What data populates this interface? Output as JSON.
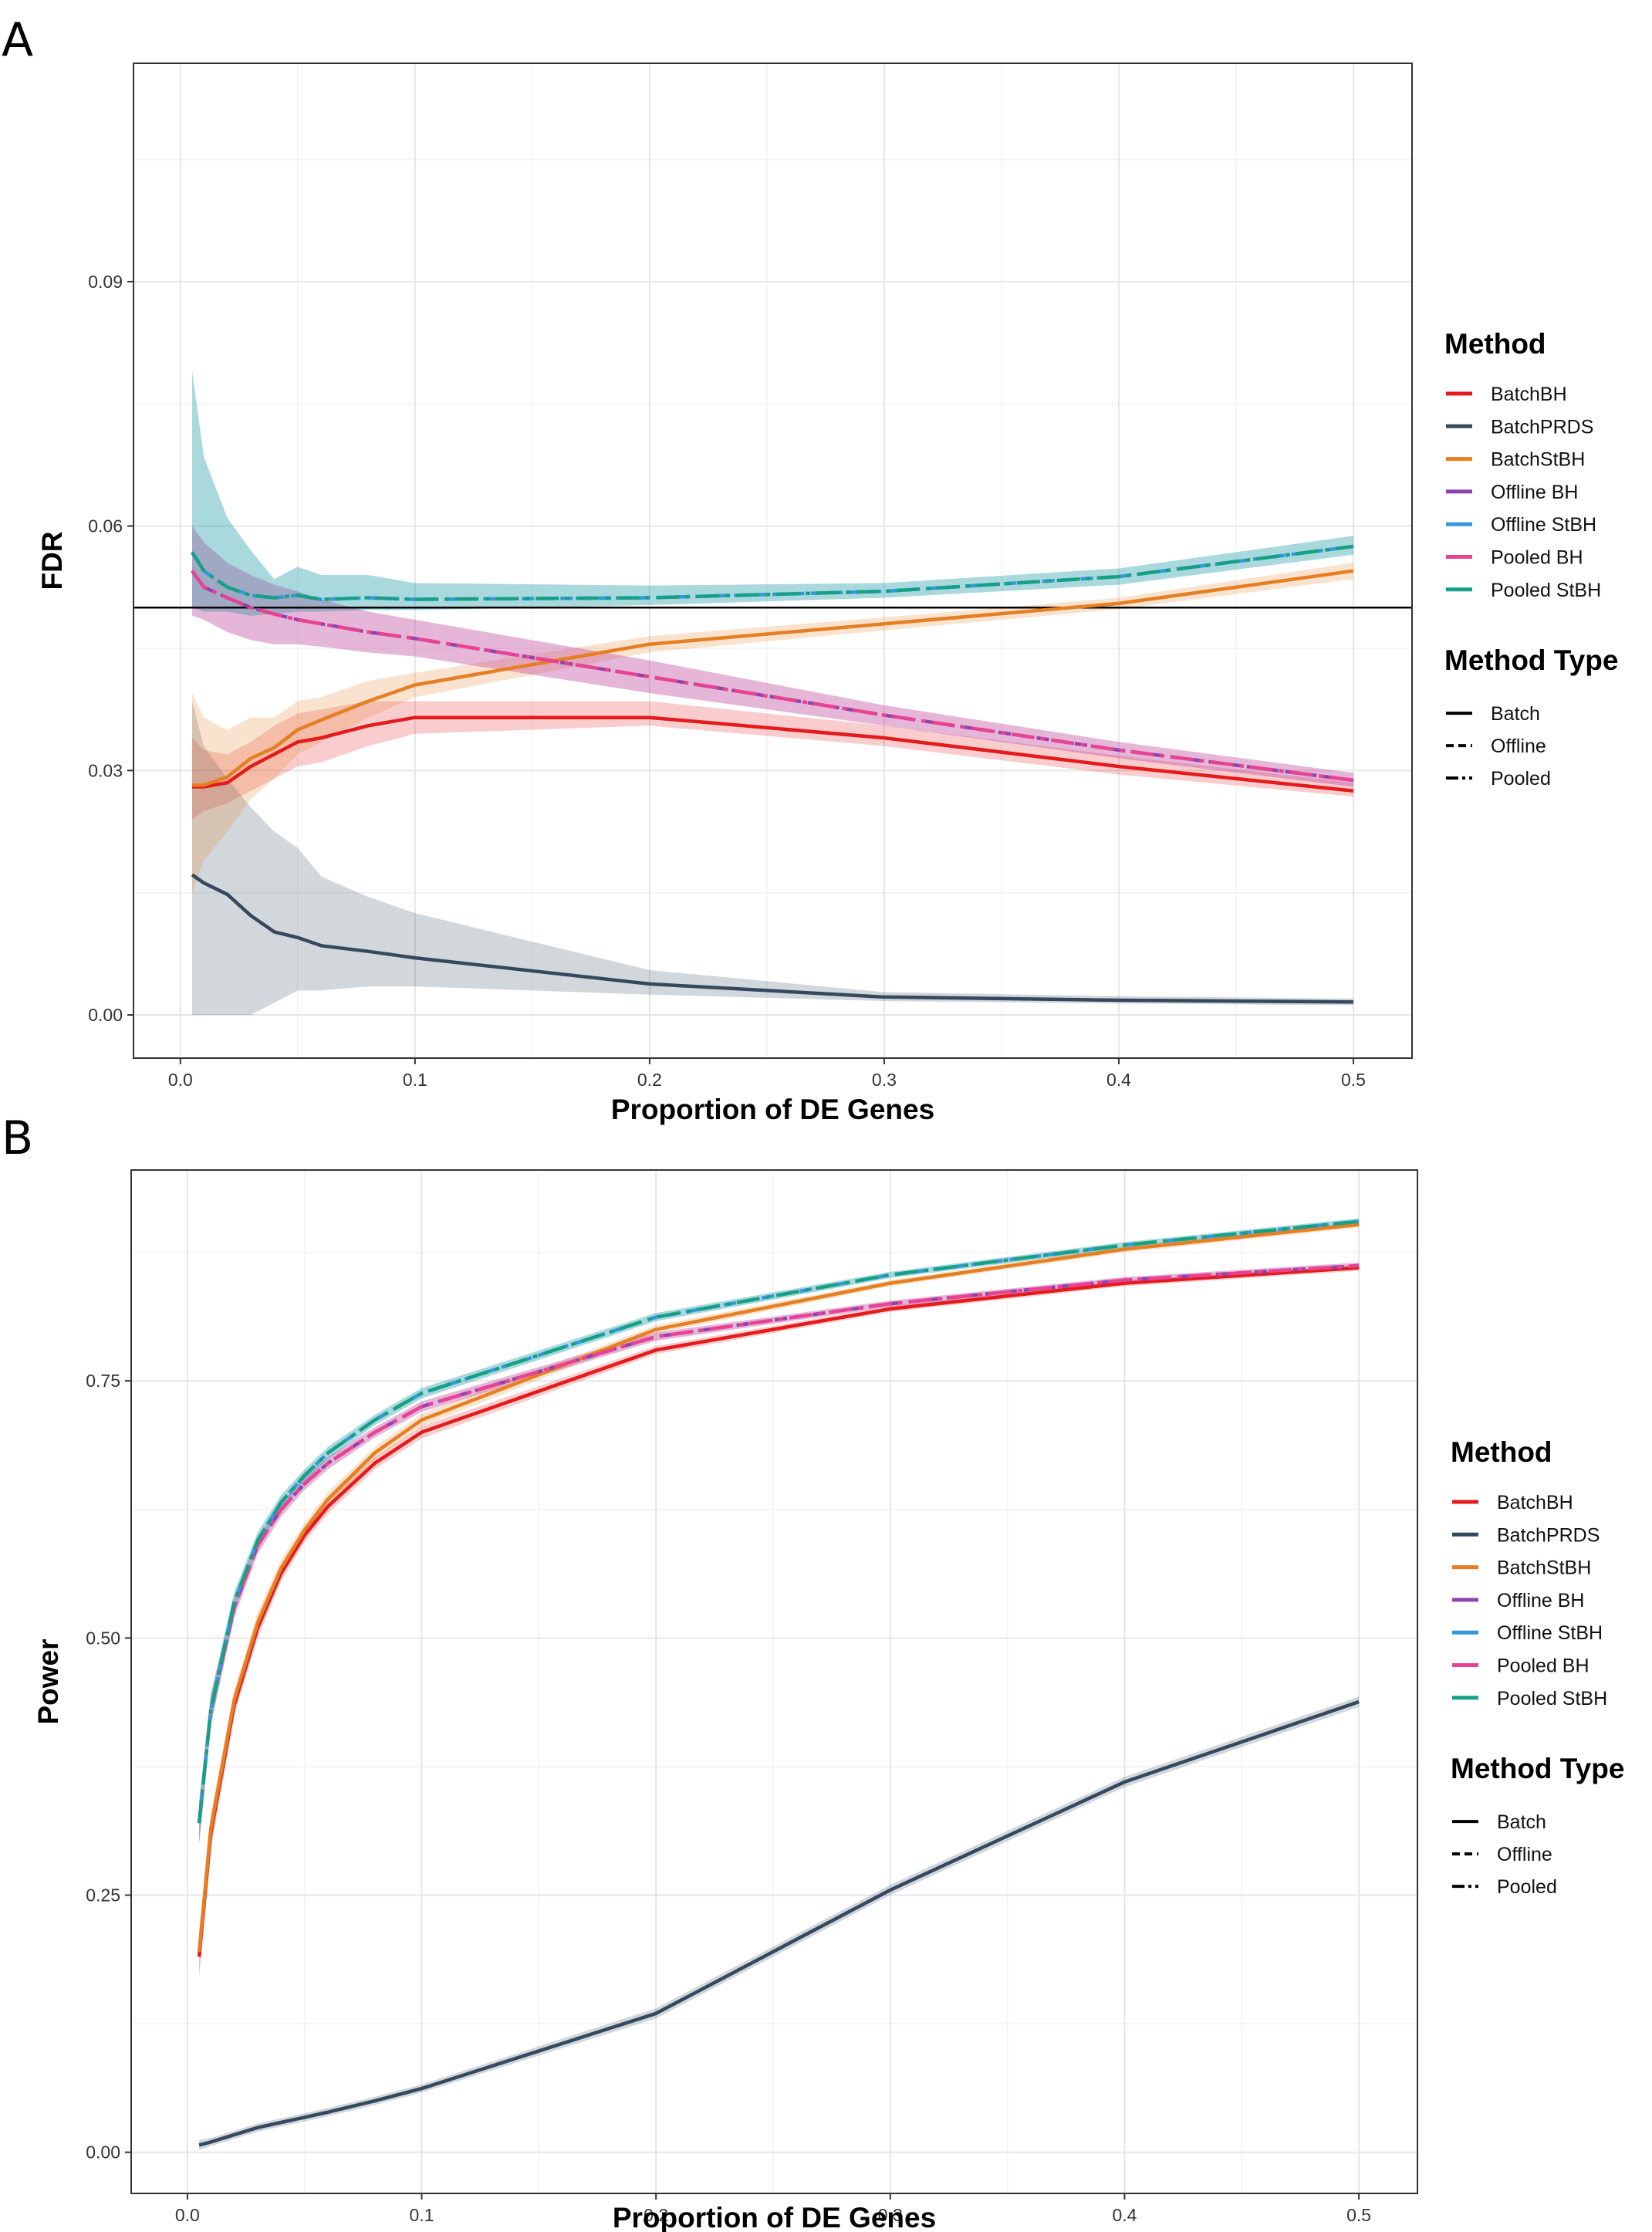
{
  "chart_data": [
    {
      "panel_label": "A",
      "type": "line",
      "xlabel": "Proportion of DE Genes",
      "ylabel": "FDR",
      "xlim": [
        -0.02,
        0.525
      ],
      "ylim": [
        -0.0053,
        0.1168
      ],
      "xticks": [
        0.0,
        0.1,
        0.2,
        0.3,
        0.4,
        0.5
      ],
      "xtick_labels": [
        "0.0",
        "0.1",
        "0.2",
        "0.3",
        "0.4",
        "0.5"
      ],
      "yticks": [
        0.0,
        0.03,
        0.06,
        0.09
      ],
      "ytick_labels": [
        "0.00",
        "0.03",
        "0.06",
        "0.09"
      ],
      "reference_line": 0.05,
      "grid": true,
      "legend_position": "right",
      "series": [
        {
          "name": "BatchBH",
          "method": "BatchBH",
          "type": "Batch",
          "color": "#e41a1c",
          "x": [
            0.005,
            0.01,
            0.02,
            0.03,
            0.04,
            0.05,
            0.06,
            0.08,
            0.1,
            0.2,
            0.3,
            0.4,
            0.5
          ],
          "y": [
            0.028,
            0.028,
            0.0285,
            0.0305,
            0.032,
            0.0335,
            0.034,
            0.0355,
            0.0365,
            0.0365,
            0.034,
            0.0305,
            0.0275
          ],
          "lower": [
            0.024,
            0.025,
            0.026,
            0.0275,
            0.029,
            0.0305,
            0.031,
            0.033,
            0.0345,
            0.0355,
            0.033,
            0.0295,
            0.0268
          ],
          "upper": [
            0.034,
            0.0325,
            0.032,
            0.0335,
            0.0355,
            0.037,
            0.0375,
            0.0385,
            0.0385,
            0.0385,
            0.0355,
            0.0318,
            0.0285
          ]
        },
        {
          "name": "BatchPRDS",
          "method": "BatchPRDS",
          "type": "Batch",
          "color": "#34495e",
          "x": [
            0.005,
            0.01,
            0.02,
            0.03,
            0.04,
            0.05,
            0.06,
            0.08,
            0.1,
            0.2,
            0.3,
            0.4,
            0.5
          ],
          "y": [
            0.0172,
            0.0162,
            0.0148,
            0.0122,
            0.0102,
            0.0095,
            0.0085,
            0.0078,
            0.007,
            0.0038,
            0.0022,
            0.0018,
            0.0016
          ],
          "lower": [
            0.0,
            0.0,
            0.0,
            0.0,
            0.0015,
            0.003,
            0.003,
            0.0035,
            0.0035,
            0.0025,
            0.0017,
            0.0014,
            0.0012
          ],
          "upper": [
            0.0385,
            0.033,
            0.029,
            0.0255,
            0.0225,
            0.0205,
            0.017,
            0.0145,
            0.0125,
            0.0055,
            0.0028,
            0.0023,
            0.002
          ]
        },
        {
          "name": "BatchStBH",
          "method": "BatchStBH",
          "type": "Batch",
          "color": "#e67e22",
          "x": [
            0.005,
            0.01,
            0.02,
            0.03,
            0.04,
            0.05,
            0.06,
            0.08,
            0.1,
            0.2,
            0.3,
            0.4,
            0.5
          ],
          "y": [
            0.0282,
            0.0282,
            0.0292,
            0.0315,
            0.0328,
            0.035,
            0.0362,
            0.0385,
            0.0405,
            0.0455,
            0.048,
            0.0505,
            0.0545
          ],
          "lower": [
            0.015,
            0.019,
            0.0225,
            0.0265,
            0.029,
            0.032,
            0.0335,
            0.0365,
            0.039,
            0.0445,
            0.0472,
            0.0498,
            0.0535
          ],
          "upper": [
            0.0395,
            0.0365,
            0.035,
            0.0365,
            0.0365,
            0.0385,
            0.039,
            0.041,
            0.042,
            0.0465,
            0.0488,
            0.0512,
            0.0555
          ]
        },
        {
          "name": "Offline BH",
          "method": "Offline BH",
          "type": "Offline",
          "color": "#8e44ad",
          "x": [
            0.005,
            0.01,
            0.02,
            0.03,
            0.04,
            0.05,
            0.06,
            0.08,
            0.1,
            0.2,
            0.3,
            0.4,
            0.5
          ],
          "y": [
            0.0545,
            0.0525,
            0.0512,
            0.05,
            0.0492,
            0.0485,
            0.048,
            0.047,
            0.0462,
            0.0415,
            0.0368,
            0.0325,
            0.0288
          ],
          "lower": [
            0.049,
            0.0485,
            0.047,
            0.046,
            0.0455,
            0.0455,
            0.0452,
            0.0445,
            0.044,
            0.0395,
            0.0355,
            0.0315,
            0.028
          ],
          "upper": [
            0.06,
            0.058,
            0.0555,
            0.054,
            0.0528,
            0.052,
            0.051,
            0.0495,
            0.0485,
            0.0435,
            0.038,
            0.0335,
            0.0297
          ]
        },
        {
          "name": "Offline StBH",
          "method": "Offline StBH",
          "type": "Offline",
          "color": "#3498db",
          "x": [
            0.005,
            0.01,
            0.02,
            0.03,
            0.04,
            0.05,
            0.06,
            0.08,
            0.1,
            0.2,
            0.3,
            0.4,
            0.5
          ],
          "y": [
            0.0568,
            0.0545,
            0.0525,
            0.0515,
            0.0512,
            0.0515,
            0.051,
            0.0512,
            0.051,
            0.0512,
            0.052,
            0.0538,
            0.0575
          ],
          "lower": [
            0.05,
            0.0495,
            0.0495,
            0.049,
            0.0492,
            0.0495,
            0.0495,
            0.0497,
            0.0497,
            0.0503,
            0.0512,
            0.0528,
            0.0565
          ],
          "upper": [
            0.079,
            0.0685,
            0.061,
            0.057,
            0.0535,
            0.055,
            0.054,
            0.054,
            0.053,
            0.0527,
            0.053,
            0.0548,
            0.0588
          ]
        },
        {
          "name": "Pooled BH",
          "method": "Pooled BH",
          "type": "Pooled",
          "color": "#e84393",
          "x": [
            0.005,
            0.01,
            0.02,
            0.03,
            0.04,
            0.05,
            0.06,
            0.08,
            0.1,
            0.2,
            0.3,
            0.4,
            0.5
          ],
          "y": [
            0.0545,
            0.0525,
            0.0512,
            0.05,
            0.0492,
            0.0485,
            0.048,
            0.047,
            0.0462,
            0.0415,
            0.0368,
            0.0325,
            0.0288
          ],
          "lower": [
            0.049,
            0.0485,
            0.047,
            0.046,
            0.0455,
            0.0455,
            0.0452,
            0.0445,
            0.044,
            0.0395,
            0.0355,
            0.0315,
            0.028
          ],
          "upper": [
            0.06,
            0.058,
            0.0555,
            0.054,
            0.0528,
            0.052,
            0.051,
            0.0495,
            0.0485,
            0.0435,
            0.038,
            0.0335,
            0.0297
          ]
        },
        {
          "name": "Pooled StBH",
          "method": "Pooled StBH",
          "type": "Pooled",
          "color": "#16a085",
          "x": [
            0.005,
            0.01,
            0.02,
            0.03,
            0.04,
            0.05,
            0.06,
            0.08,
            0.1,
            0.2,
            0.3,
            0.4,
            0.5
          ],
          "y": [
            0.0568,
            0.0545,
            0.0525,
            0.0515,
            0.0512,
            0.0515,
            0.051,
            0.0512,
            0.051,
            0.0512,
            0.052,
            0.0538,
            0.0575
          ],
          "lower": [
            0.05,
            0.0495,
            0.0495,
            0.049,
            0.0492,
            0.0495,
            0.0495,
            0.0497,
            0.0497,
            0.0503,
            0.0512,
            0.0528,
            0.0565
          ],
          "upper": [
            0.079,
            0.0685,
            0.061,
            0.057,
            0.0535,
            0.055,
            0.054,
            0.054,
            0.053,
            0.0527,
            0.053,
            0.0548,
            0.0588
          ]
        }
      ]
    },
    {
      "panel_label": "B",
      "type": "line",
      "xlabel": "Proportion of DE Genes",
      "ylabel": "Power",
      "xlim": [
        -0.024,
        0.525
      ],
      "ylim": [
        -0.04,
        0.955
      ],
      "xticks": [
        0.0,
        0.1,
        0.2,
        0.3,
        0.4,
        0.5
      ],
      "xtick_labels": [
        "0.0",
        "0.1",
        "0.2",
        "0.3",
        "0.4",
        "0.5"
      ],
      "yticks": [
        0.0,
        0.25,
        0.5,
        0.75
      ],
      "ytick_labels": [
        "0.00",
        "0.25",
        "0.50",
        "0.75"
      ],
      "grid": true,
      "legend_position": "right",
      "series": [
        {
          "name": "BatchBH",
          "method": "BatchBH",
          "type": "Batch",
          "color": "#e41a1c",
          "x": [
            0.005,
            0.01,
            0.02,
            0.03,
            0.04,
            0.05,
            0.06,
            0.08,
            0.1,
            0.2,
            0.3,
            0.4,
            0.5
          ],
          "y": [
            0.19,
            0.31,
            0.435,
            0.51,
            0.563,
            0.6,
            0.628,
            0.67,
            0.7,
            0.78,
            0.82,
            0.845,
            0.86
          ],
          "lower": [
            0.17,
            0.295,
            0.425,
            0.5,
            0.555,
            0.593,
            0.621,
            0.664,
            0.694,
            0.776,
            0.817,
            0.842,
            0.857
          ],
          "upper": [
            0.21,
            0.325,
            0.445,
            0.52,
            0.571,
            0.607,
            0.635,
            0.676,
            0.706,
            0.784,
            0.823,
            0.848,
            0.863
          ]
        },
        {
          "name": "BatchPRDS",
          "method": "BatchPRDS",
          "type": "Batch",
          "color": "#34495e",
          "x": [
            0.005,
            0.01,
            0.02,
            0.03,
            0.04,
            0.05,
            0.06,
            0.08,
            0.1,
            0.2,
            0.3,
            0.4,
            0.5
          ],
          "y": [
            0.007,
            0.01,
            0.017,
            0.024,
            0.029,
            0.034,
            0.039,
            0.05,
            0.062,
            0.135,
            0.255,
            0.36,
            0.438
          ],
          "lower": [
            0.002,
            0.006,
            0.013,
            0.02,
            0.025,
            0.03,
            0.035,
            0.046,
            0.058,
            0.13,
            0.25,
            0.355,
            0.433
          ],
          "upper": [
            0.012,
            0.014,
            0.021,
            0.028,
            0.033,
            0.038,
            0.043,
            0.054,
            0.066,
            0.14,
            0.26,
            0.365,
            0.443
          ]
        },
        {
          "name": "BatchStBH",
          "method": "BatchStBH",
          "type": "Batch",
          "color": "#e67e22",
          "x": [
            0.005,
            0.01,
            0.02,
            0.03,
            0.04,
            0.05,
            0.06,
            0.08,
            0.1,
            0.2,
            0.3,
            0.4,
            0.5
          ],
          "y": [
            0.195,
            0.315,
            0.44,
            0.515,
            0.568,
            0.605,
            0.635,
            0.68,
            0.712,
            0.8,
            0.845,
            0.878,
            0.902
          ],
          "lower": [
            0.175,
            0.3,
            0.43,
            0.505,
            0.56,
            0.598,
            0.628,
            0.674,
            0.706,
            0.796,
            0.842,
            0.875,
            0.899
          ],
          "upper": [
            0.215,
            0.33,
            0.45,
            0.525,
            0.576,
            0.612,
            0.642,
            0.686,
            0.718,
            0.804,
            0.848,
            0.881,
            0.905
          ]
        },
        {
          "name": "Offline BH",
          "method": "Offline BH",
          "type": "Offline",
          "color": "#8e44ad",
          "x": [
            0.005,
            0.01,
            0.02,
            0.03,
            0.04,
            0.05,
            0.06,
            0.08,
            0.1,
            0.2,
            0.3,
            0.4,
            0.5
          ],
          "y": [
            0.32,
            0.43,
            0.53,
            0.59,
            0.625,
            0.65,
            0.67,
            0.7,
            0.725,
            0.793,
            0.825,
            0.848,
            0.862
          ],
          "lower": [
            0.3,
            0.415,
            0.52,
            0.582,
            0.618,
            0.644,
            0.664,
            0.695,
            0.72,
            0.789,
            0.822,
            0.845,
            0.859
          ],
          "upper": [
            0.34,
            0.445,
            0.54,
            0.598,
            0.632,
            0.656,
            0.676,
            0.705,
            0.73,
            0.797,
            0.828,
            0.851,
            0.865
          ]
        },
        {
          "name": "Offline StBH",
          "method": "Offline StBH",
          "type": "Offline",
          "color": "#3498db",
          "x": [
            0.005,
            0.01,
            0.02,
            0.03,
            0.04,
            0.05,
            0.06,
            0.08,
            0.1,
            0.2,
            0.3,
            0.4,
            0.5
          ],
          "y": [
            0.32,
            0.43,
            0.535,
            0.595,
            0.632,
            0.658,
            0.68,
            0.712,
            0.738,
            0.812,
            0.853,
            0.882,
            0.905
          ],
          "lower": [
            0.3,
            0.415,
            0.525,
            0.587,
            0.625,
            0.652,
            0.674,
            0.707,
            0.733,
            0.808,
            0.85,
            0.879,
            0.902
          ],
          "upper": [
            0.34,
            0.445,
            0.545,
            0.603,
            0.639,
            0.664,
            0.686,
            0.717,
            0.743,
            0.816,
            0.856,
            0.885,
            0.908
          ]
        },
        {
          "name": "Pooled BH",
          "method": "Pooled BH",
          "type": "Pooled",
          "color": "#e84393",
          "x": [
            0.005,
            0.01,
            0.02,
            0.03,
            0.04,
            0.05,
            0.06,
            0.08,
            0.1,
            0.2,
            0.3,
            0.4,
            0.5
          ],
          "y": [
            0.32,
            0.43,
            0.53,
            0.59,
            0.625,
            0.65,
            0.67,
            0.7,
            0.725,
            0.793,
            0.825,
            0.848,
            0.862
          ],
          "lower": [
            0.3,
            0.415,
            0.52,
            0.582,
            0.618,
            0.644,
            0.664,
            0.695,
            0.72,
            0.789,
            0.822,
            0.845,
            0.859
          ],
          "upper": [
            0.34,
            0.445,
            0.54,
            0.598,
            0.632,
            0.656,
            0.676,
            0.705,
            0.73,
            0.797,
            0.828,
            0.851,
            0.865
          ]
        },
        {
          "name": "Pooled StBH",
          "method": "Pooled StBH",
          "type": "Pooled",
          "color": "#16a085",
          "x": [
            0.005,
            0.01,
            0.02,
            0.03,
            0.04,
            0.05,
            0.06,
            0.08,
            0.1,
            0.2,
            0.3,
            0.4,
            0.5
          ],
          "y": [
            0.32,
            0.43,
            0.535,
            0.595,
            0.632,
            0.658,
            0.68,
            0.712,
            0.738,
            0.812,
            0.853,
            0.882,
            0.905
          ],
          "lower": [
            0.3,
            0.415,
            0.525,
            0.587,
            0.625,
            0.652,
            0.674,
            0.707,
            0.733,
            0.808,
            0.85,
            0.879,
            0.902
          ],
          "upper": [
            0.34,
            0.445,
            0.545,
            0.603,
            0.639,
            0.664,
            0.686,
            0.717,
            0.743,
            0.816,
            0.856,
            0.885,
            0.908
          ]
        }
      ]
    }
  ],
  "legend": {
    "method_title": "Method",
    "methods": [
      {
        "label": "BatchBH",
        "color": "#e41a1c"
      },
      {
        "label": "BatchPRDS",
        "color": "#34495e"
      },
      {
        "label": "BatchStBH",
        "color": "#e67e22"
      },
      {
        "label": "Offline BH",
        "color": "#8e44ad"
      },
      {
        "label": "Offline StBH",
        "color": "#3498db"
      },
      {
        "label": "Pooled BH",
        "color": "#e84393"
      },
      {
        "label": "Pooled StBH",
        "color": "#16a085"
      }
    ],
    "type_title": "Method Type",
    "types": [
      {
        "label": "Batch",
        "dash": "solid"
      },
      {
        "label": "Offline",
        "dash": "dashed"
      },
      {
        "label": "Pooled",
        "dash": "longdash"
      }
    ]
  }
}
